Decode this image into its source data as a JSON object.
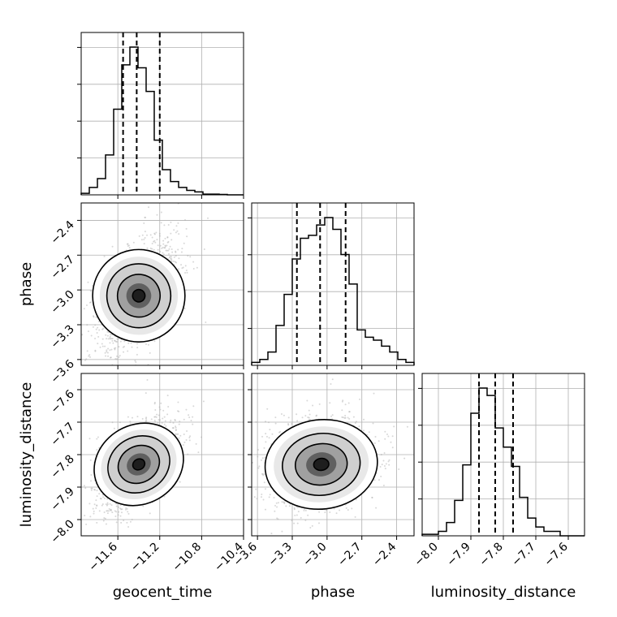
{
  "chart_data": {
    "type": "corner",
    "parameters": [
      {
        "name": "geocent_time",
        "label": "geocent_time",
        "range": [
          -11.95,
          -10.4
        ],
        "ticks": [
          -11.6,
          -11.2,
          -10.8,
          -10.4
        ],
        "quantiles": [
          -11.55,
          -11.42,
          -11.2
        ],
        "mode": -11.4,
        "sd": 0.15
      },
      {
        "name": "phase",
        "label": "phase",
        "range": [
          -3.65,
          -2.25
        ],
        "ticks": [
          -3.6,
          -3.3,
          -3.0,
          -2.7,
          -2.4
        ],
        "quantiles": [
          -3.26,
          -3.06,
          -2.84
        ],
        "mode": -3.05,
        "sd": 0.18
      },
      {
        "name": "luminosity_distance",
        "label": "luminosity_distance",
        "range": [
          -8.05,
          -7.55
        ],
        "ticks": [
          -8.0,
          -7.9,
          -7.8,
          -7.7,
          -7.6
        ],
        "quantiles": [
          -7.875,
          -7.825,
          -7.77
        ],
        "mode": -7.83,
        "sd": 0.055
      }
    ],
    "tick_labels": {
      "geocent_time": [
        "−11.6",
        "−11.2",
        "−10.8",
        "−10.4"
      ],
      "phase": [
        "−3.6",
        "−3.3",
        "−3.0",
        "−2.7",
        "−2.4"
      ],
      "luminosity_distance": [
        "−8.0",
        "−7.9",
        "−7.8",
        "−7.7",
        "−7.6"
      ]
    },
    "histograms": {
      "geocent_time": [
        0.01,
        0.05,
        0.11,
        0.27,
        0.58,
        0.88,
        1.0,
        0.86,
        0.7,
        0.37,
        0.17,
        0.09,
        0.05,
        0.03,
        0.02,
        0.005,
        0.005,
        0.003,
        0.0,
        0.0
      ],
      "phase": [
        0.02,
        0.04,
        0.09,
        0.27,
        0.48,
        0.72,
        0.86,
        0.88,
        0.95,
        1.0,
        0.92,
        0.75,
        0.55,
        0.24,
        0.19,
        0.17,
        0.13,
        0.09,
        0.04,
        0.02
      ],
      "luminosity_distance": [
        0.01,
        0.01,
        0.03,
        0.09,
        0.24,
        0.48,
        0.83,
        1.0,
        0.95,
        0.73,
        0.6,
        0.47,
        0.26,
        0.12,
        0.06,
        0.03,
        0.03,
        0.0,
        0.0,
        0.0
      ]
    },
    "correlations": {
      "phase|geocent_time": 0.55,
      "luminosity_distance|geocent_time": 0.55,
      "luminosity_distance|phase": 0.15
    },
    "grid": true,
    "quantile_style": "dashed"
  }
}
